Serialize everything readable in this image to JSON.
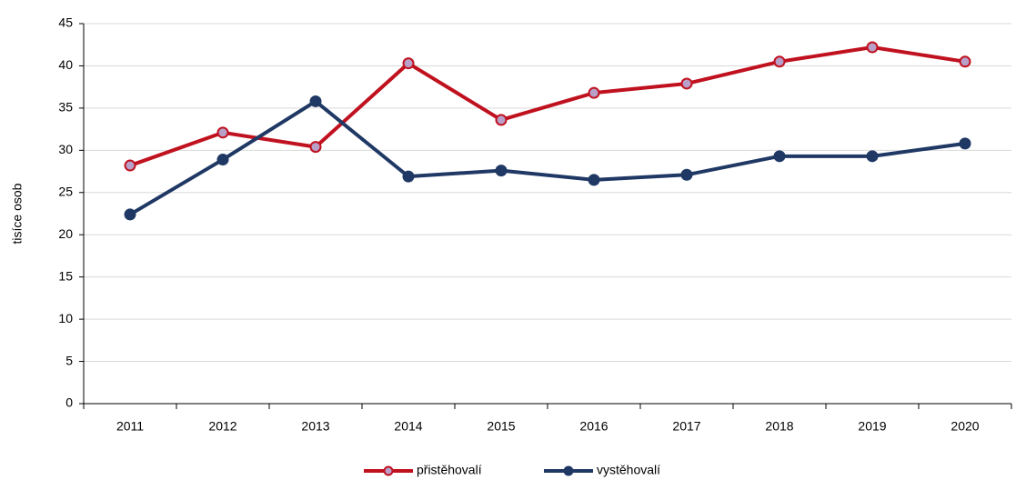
{
  "chart_data": {
    "type": "line",
    "y_label": "tisíce osob",
    "categories": [
      "2011",
      "2012",
      "2013",
      "2014",
      "2015",
      "2016",
      "2017",
      "2018",
      "2019",
      "2020"
    ],
    "series": [
      {
        "name": "přistěhovalí",
        "color": "#c0111f",
        "values": [
          28.2,
          32.1,
          30.4,
          40.3,
          33.6,
          36.8,
          37.9,
          40.5,
          42.2,
          40.5
        ]
      },
      {
        "name": "vystěhovalí",
        "color": "#1f3864",
        "values": [
          22.4,
          28.9,
          35.8,
          26.9,
          27.6,
          26.5,
          27.1,
          29.3,
          29.3,
          30.8
        ]
      }
    ],
    "ylim": [
      0,
      45
    ],
    "yticks": [
      0,
      5,
      10,
      15,
      20,
      25,
      30,
      35,
      40,
      45
    ],
    "grid": true,
    "legend": "bottom"
  }
}
